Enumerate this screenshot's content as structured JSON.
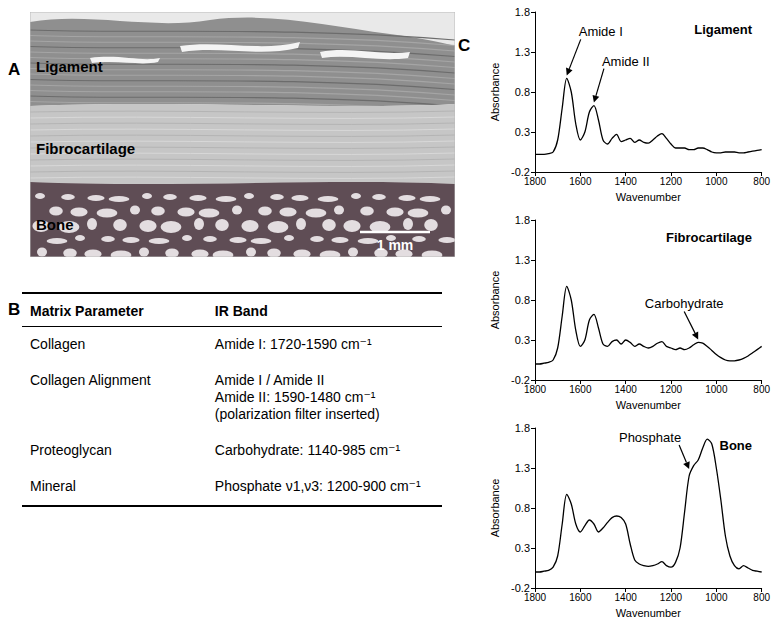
{
  "panel_labels": [
    "A",
    "B",
    "C"
  ],
  "histology": {
    "labels": [
      "Ligament",
      "Fibrocartilage",
      "Bone"
    ],
    "scale_bar": "1 mm"
  },
  "table": {
    "header": [
      "Matrix Parameter",
      "IR Band"
    ],
    "rows": [
      [
        "Collagen",
        [
          "Amide I: 1720-1590 cm⁻¹"
        ]
      ],
      [
        "Collagen Alignment",
        [
          "Amide I / Amide II",
          "Amide II: 1590-1480 cm⁻¹",
          "(polarization filter inserted)"
        ]
      ],
      [
        "Proteoglycan",
        [
          "Carbohydrate: 1140-985 cm⁻¹"
        ]
      ],
      [
        "Mineral",
        [
          "Phosphate ν1,ν3: 1200-900 cm⁻¹"
        ]
      ]
    ]
  },
  "chart_data": [
    {
      "type": "line",
      "title": "Ligament",
      "xlabel": "Wavenumber",
      "ylabel": "Absorbance",
      "color": "#000000",
      "grid": false,
      "x": [
        1800,
        1780,
        1760,
        1740,
        1720,
        1700,
        1680,
        1660,
        1640,
        1620,
        1600,
        1580,
        1560,
        1540,
        1520,
        1500,
        1480,
        1460,
        1440,
        1420,
        1400,
        1380,
        1360,
        1340,
        1320,
        1300,
        1280,
        1260,
        1240,
        1220,
        1200,
        1180,
        1160,
        1140,
        1120,
        1100,
        1080,
        1060,
        1040,
        1020,
        1000,
        980,
        960,
        940,
        920,
        900,
        880,
        860,
        840,
        820,
        800
      ],
      "values": [
        0.02,
        0.02,
        0.02,
        0.03,
        0.05,
        0.2,
        0.6,
        0.97,
        0.8,
        0.4,
        0.2,
        0.3,
        0.55,
        0.63,
        0.45,
        0.2,
        0.15,
        0.22,
        0.27,
        0.18,
        0.2,
        0.22,
        0.17,
        0.2,
        0.17,
        0.16,
        0.2,
        0.25,
        0.28,
        0.22,
        0.15,
        0.1,
        0.1,
        0.1,
        0.08,
        0.08,
        0.1,
        0.1,
        0.08,
        0.05,
        0.04,
        0.04,
        0.05,
        0.05,
        0.05,
        0.04,
        0.04,
        0.05,
        0.06,
        0.07,
        0.08
      ],
      "xlim": [
        1800,
        800
      ],
      "xticks": [
        1800,
        1600,
        1400,
        1200,
        1000,
        800
      ],
      "ylim": [
        -0.2,
        1.8
      ],
      "yticks": [
        -0.2,
        0.3,
        0.8,
        1.3,
        1.8
      ],
      "annotations": [
        {
          "text": "Amide I",
          "x": 1660,
          "y": 0.97
        },
        {
          "text": "Amide II",
          "x": 1540,
          "y": 0.63
        }
      ]
    },
    {
      "type": "line",
      "title": "Fibrocartilage",
      "xlabel": "Wavenumber",
      "ylabel": "Absorbance",
      "color": "#000000",
      "grid": false,
      "x": [
        1800,
        1780,
        1760,
        1740,
        1720,
        1700,
        1680,
        1660,
        1640,
        1620,
        1600,
        1580,
        1560,
        1540,
        1520,
        1500,
        1480,
        1460,
        1440,
        1420,
        1400,
        1380,
        1360,
        1340,
        1320,
        1300,
        1280,
        1260,
        1240,
        1220,
        1200,
        1180,
        1160,
        1140,
        1120,
        1100,
        1080,
        1060,
        1040,
        1020,
        1000,
        980,
        960,
        940,
        920,
        900,
        880,
        860,
        840,
        820,
        800
      ],
      "values": [
        0.0,
        0.0,
        0.01,
        0.02,
        0.05,
        0.2,
        0.6,
        0.97,
        0.8,
        0.42,
        0.22,
        0.3,
        0.55,
        0.62,
        0.45,
        0.25,
        0.22,
        0.28,
        0.3,
        0.25,
        0.3,
        0.27,
        0.22,
        0.25,
        0.22,
        0.2,
        0.22,
        0.26,
        0.28,
        0.22,
        0.2,
        0.18,
        0.2,
        0.18,
        0.2,
        0.24,
        0.27,
        0.26,
        0.22,
        0.17,
        0.12,
        0.08,
        0.05,
        0.04,
        0.04,
        0.05,
        0.07,
        0.1,
        0.14,
        0.18,
        0.22
      ],
      "xlim": [
        1800,
        800
      ],
      "xticks": [
        1800,
        1600,
        1400,
        1200,
        1000,
        800
      ],
      "ylim": [
        -0.2,
        1.8
      ],
      "yticks": [
        -0.2,
        0.3,
        0.8,
        1.3,
        1.8
      ],
      "annotations": [
        {
          "text": "Carbohydrate",
          "x": 1080,
          "y": 0.27
        }
      ]
    },
    {
      "type": "line",
      "title": "Bone",
      "xlabel": "Wavenumber",
      "ylabel": "Absorbance",
      "color": "#000000",
      "grid": false,
      "x": [
        1800,
        1780,
        1760,
        1740,
        1720,
        1700,
        1680,
        1660,
        1640,
        1620,
        1600,
        1580,
        1560,
        1540,
        1520,
        1500,
        1480,
        1460,
        1440,
        1420,
        1400,
        1380,
        1360,
        1340,
        1320,
        1300,
        1280,
        1260,
        1240,
        1220,
        1200,
        1180,
        1160,
        1140,
        1120,
        1100,
        1080,
        1060,
        1040,
        1020,
        1000,
        980,
        960,
        940,
        920,
        900,
        880,
        860,
        840,
        820,
        800
      ],
      "values": [
        0.0,
        0.0,
        0.01,
        0.02,
        0.06,
        0.2,
        0.6,
        0.97,
        0.85,
        0.6,
        0.5,
        0.58,
        0.65,
        0.6,
        0.5,
        0.55,
        0.62,
        0.68,
        0.7,
        0.68,
        0.6,
        0.35,
        0.15,
        0.1,
        0.08,
        0.07,
        0.08,
        0.1,
        0.13,
        0.08,
        0.06,
        0.12,
        0.3,
        0.75,
        1.2,
        1.33,
        1.4,
        1.55,
        1.66,
        1.6,
        1.3,
        0.9,
        0.45,
        0.2,
        0.08,
        0.04,
        0.08,
        0.05,
        0.02,
        0.01,
        0.0
      ],
      "xlim": [
        1800,
        800
      ],
      "xticks": [
        1800,
        1600,
        1400,
        1200,
        1000,
        800
      ],
      "ylim": [
        -0.2,
        1.8
      ],
      "yticks": [
        -0.2,
        0.3,
        0.8,
        1.3,
        1.8
      ],
      "annotations": [
        {
          "text": "Phosphate",
          "x": 1120,
          "y": 1.25
        }
      ]
    }
  ]
}
